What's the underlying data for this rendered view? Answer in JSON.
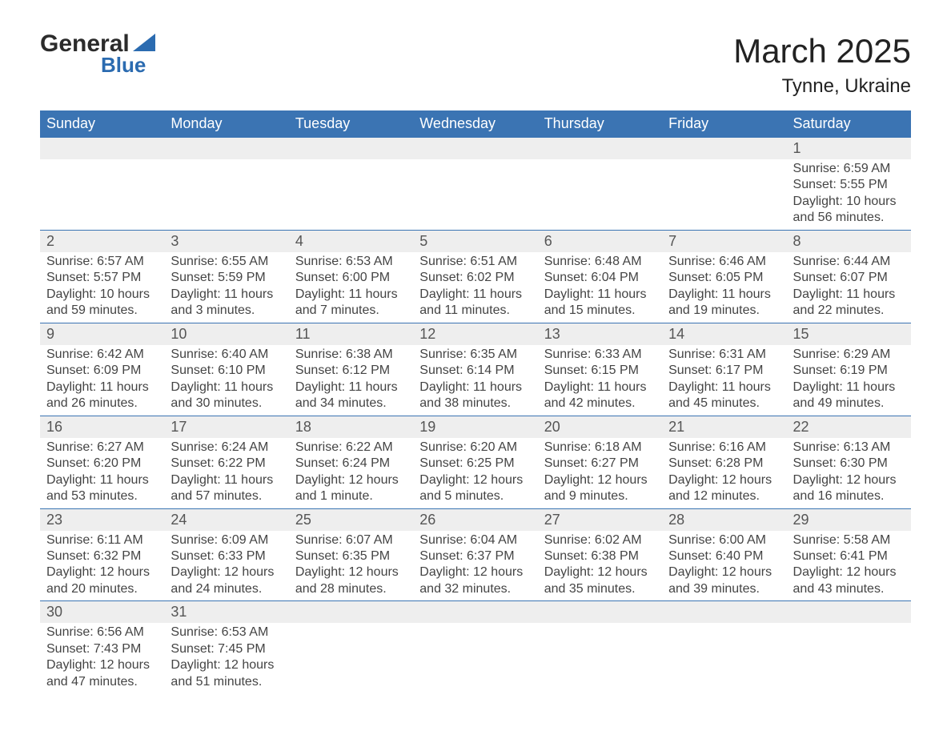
{
  "logo": {
    "text1": "General",
    "text2": "Blue",
    "triangle_color": "#2b6bb0"
  },
  "title": "March 2025",
  "location": "Tynne, Ukraine",
  "colors": {
    "header_bg": "#3b74b3",
    "header_text": "#ffffff",
    "daynum_bg": "#eeeeee",
    "daynum_text": "#555555",
    "body_text": "#444444",
    "row_border": "#3b74b3"
  },
  "day_headers": [
    "Sunday",
    "Monday",
    "Tuesday",
    "Wednesday",
    "Thursday",
    "Friday",
    "Saturday"
  ],
  "weeks": [
    {
      "nums": [
        "",
        "",
        "",
        "",
        "",
        "",
        "1"
      ],
      "cells": [
        {},
        {},
        {},
        {},
        {},
        {},
        {
          "sunrise": "Sunrise: 6:59 AM",
          "sunset": "Sunset: 5:55 PM",
          "dl1": "Daylight: 10 hours",
          "dl2": "and 56 minutes."
        }
      ]
    },
    {
      "nums": [
        "2",
        "3",
        "4",
        "5",
        "6",
        "7",
        "8"
      ],
      "cells": [
        {
          "sunrise": "Sunrise: 6:57 AM",
          "sunset": "Sunset: 5:57 PM",
          "dl1": "Daylight: 10 hours",
          "dl2": "and 59 minutes."
        },
        {
          "sunrise": "Sunrise: 6:55 AM",
          "sunset": "Sunset: 5:59 PM",
          "dl1": "Daylight: 11 hours",
          "dl2": "and 3 minutes."
        },
        {
          "sunrise": "Sunrise: 6:53 AM",
          "sunset": "Sunset: 6:00 PM",
          "dl1": "Daylight: 11 hours",
          "dl2": "and 7 minutes."
        },
        {
          "sunrise": "Sunrise: 6:51 AM",
          "sunset": "Sunset: 6:02 PM",
          "dl1": "Daylight: 11 hours",
          "dl2": "and 11 minutes."
        },
        {
          "sunrise": "Sunrise: 6:48 AM",
          "sunset": "Sunset: 6:04 PM",
          "dl1": "Daylight: 11 hours",
          "dl2": "and 15 minutes."
        },
        {
          "sunrise": "Sunrise: 6:46 AM",
          "sunset": "Sunset: 6:05 PM",
          "dl1": "Daylight: 11 hours",
          "dl2": "and 19 minutes."
        },
        {
          "sunrise": "Sunrise: 6:44 AM",
          "sunset": "Sunset: 6:07 PM",
          "dl1": "Daylight: 11 hours",
          "dl2": "and 22 minutes."
        }
      ]
    },
    {
      "nums": [
        "9",
        "10",
        "11",
        "12",
        "13",
        "14",
        "15"
      ],
      "cells": [
        {
          "sunrise": "Sunrise: 6:42 AM",
          "sunset": "Sunset: 6:09 PM",
          "dl1": "Daylight: 11 hours",
          "dl2": "and 26 minutes."
        },
        {
          "sunrise": "Sunrise: 6:40 AM",
          "sunset": "Sunset: 6:10 PM",
          "dl1": "Daylight: 11 hours",
          "dl2": "and 30 minutes."
        },
        {
          "sunrise": "Sunrise: 6:38 AM",
          "sunset": "Sunset: 6:12 PM",
          "dl1": "Daylight: 11 hours",
          "dl2": "and 34 minutes."
        },
        {
          "sunrise": "Sunrise: 6:35 AM",
          "sunset": "Sunset: 6:14 PM",
          "dl1": "Daylight: 11 hours",
          "dl2": "and 38 minutes."
        },
        {
          "sunrise": "Sunrise: 6:33 AM",
          "sunset": "Sunset: 6:15 PM",
          "dl1": "Daylight: 11 hours",
          "dl2": "and 42 minutes."
        },
        {
          "sunrise": "Sunrise: 6:31 AM",
          "sunset": "Sunset: 6:17 PM",
          "dl1": "Daylight: 11 hours",
          "dl2": "and 45 minutes."
        },
        {
          "sunrise": "Sunrise: 6:29 AM",
          "sunset": "Sunset: 6:19 PM",
          "dl1": "Daylight: 11 hours",
          "dl2": "and 49 minutes."
        }
      ]
    },
    {
      "nums": [
        "16",
        "17",
        "18",
        "19",
        "20",
        "21",
        "22"
      ],
      "cells": [
        {
          "sunrise": "Sunrise: 6:27 AM",
          "sunset": "Sunset: 6:20 PM",
          "dl1": "Daylight: 11 hours",
          "dl2": "and 53 minutes."
        },
        {
          "sunrise": "Sunrise: 6:24 AM",
          "sunset": "Sunset: 6:22 PM",
          "dl1": "Daylight: 11 hours",
          "dl2": "and 57 minutes."
        },
        {
          "sunrise": "Sunrise: 6:22 AM",
          "sunset": "Sunset: 6:24 PM",
          "dl1": "Daylight: 12 hours",
          "dl2": "and 1 minute."
        },
        {
          "sunrise": "Sunrise: 6:20 AM",
          "sunset": "Sunset: 6:25 PM",
          "dl1": "Daylight: 12 hours",
          "dl2": "and 5 minutes."
        },
        {
          "sunrise": "Sunrise: 6:18 AM",
          "sunset": "Sunset: 6:27 PM",
          "dl1": "Daylight: 12 hours",
          "dl2": "and 9 minutes."
        },
        {
          "sunrise": "Sunrise: 6:16 AM",
          "sunset": "Sunset: 6:28 PM",
          "dl1": "Daylight: 12 hours",
          "dl2": "and 12 minutes."
        },
        {
          "sunrise": "Sunrise: 6:13 AM",
          "sunset": "Sunset: 6:30 PM",
          "dl1": "Daylight: 12 hours",
          "dl2": "and 16 minutes."
        }
      ]
    },
    {
      "nums": [
        "23",
        "24",
        "25",
        "26",
        "27",
        "28",
        "29"
      ],
      "cells": [
        {
          "sunrise": "Sunrise: 6:11 AM",
          "sunset": "Sunset: 6:32 PM",
          "dl1": "Daylight: 12 hours",
          "dl2": "and 20 minutes."
        },
        {
          "sunrise": "Sunrise: 6:09 AM",
          "sunset": "Sunset: 6:33 PM",
          "dl1": "Daylight: 12 hours",
          "dl2": "and 24 minutes."
        },
        {
          "sunrise": "Sunrise: 6:07 AM",
          "sunset": "Sunset: 6:35 PM",
          "dl1": "Daylight: 12 hours",
          "dl2": "and 28 minutes."
        },
        {
          "sunrise": "Sunrise: 6:04 AM",
          "sunset": "Sunset: 6:37 PM",
          "dl1": "Daylight: 12 hours",
          "dl2": "and 32 minutes."
        },
        {
          "sunrise": "Sunrise: 6:02 AM",
          "sunset": "Sunset: 6:38 PM",
          "dl1": "Daylight: 12 hours",
          "dl2": "and 35 minutes."
        },
        {
          "sunrise": "Sunrise: 6:00 AM",
          "sunset": "Sunset: 6:40 PM",
          "dl1": "Daylight: 12 hours",
          "dl2": "and 39 minutes."
        },
        {
          "sunrise": "Sunrise: 5:58 AM",
          "sunset": "Sunset: 6:41 PM",
          "dl1": "Daylight: 12 hours",
          "dl2": "and 43 minutes."
        }
      ]
    },
    {
      "nums": [
        "30",
        "31",
        "",
        "",
        "",
        "",
        ""
      ],
      "cells": [
        {
          "sunrise": "Sunrise: 6:56 AM",
          "sunset": "Sunset: 7:43 PM",
          "dl1": "Daylight: 12 hours",
          "dl2": "and 47 minutes."
        },
        {
          "sunrise": "Sunrise: 6:53 AM",
          "sunset": "Sunset: 7:45 PM",
          "dl1": "Daylight: 12 hours",
          "dl2": "and 51 minutes."
        },
        {},
        {},
        {},
        {},
        {}
      ]
    }
  ]
}
